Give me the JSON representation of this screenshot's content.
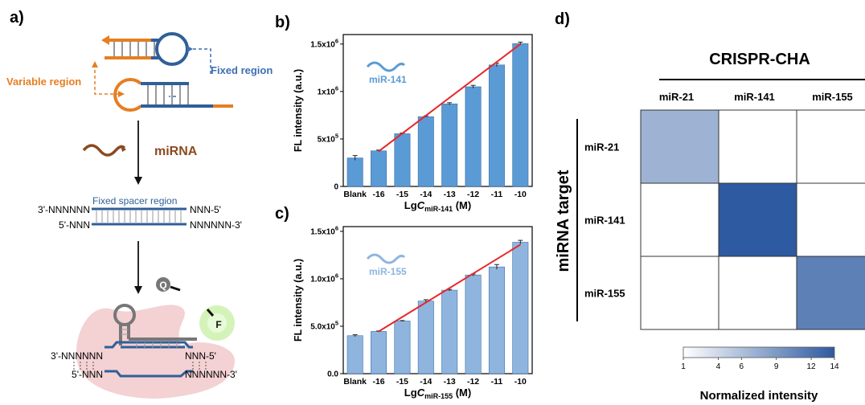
{
  "panels": {
    "a": {
      "label": "a)",
      "variable_region": "Variable region",
      "fixed_region": "Fixed region",
      "mirna": "miRNA",
      "fixed_spacer": "Fixed spacer region",
      "strand1_left": "3'-NNNNNN",
      "strand1_right": "NNN-5'",
      "strand2_left": "5'-NNN",
      "strand2_right": "NNNNNN-3'",
      "q_label": "Q",
      "f_label": "F",
      "bottom1_left": "3'-NNNNNN",
      "bottom1_right": "NNN-5'",
      "bottom2_left": "5'-NNN",
      "bottom2_right": "NNNNNN-3'"
    },
    "b": {
      "label": "b)"
    },
    "c": {
      "label": "c)"
    },
    "d": {
      "label": "d)"
    }
  },
  "chart_data": [
    {
      "type": "bar",
      "panel": "b",
      "inset_label": "miR-141",
      "categories": [
        "Blank",
        "-16",
        "-15",
        "-14",
        "-13",
        "-12",
        "-11",
        "-10"
      ],
      "values": [
        300000,
        375000,
        555000,
        735000,
        870000,
        1050000,
        1280000,
        1505000
      ],
      "errors": [
        25000,
        8000,
        8000,
        8000,
        12000,
        15000,
        18000,
        15000
      ],
      "fit_line": {
        "from_index": 1,
        "to_index": 7,
        "y_start": 370000,
        "y_end": 1500000
      },
      "ylabel": "FL intensity (a.u.)",
      "xlabel_prefix": "Lg",
      "xlabel_var": "C",
      "xlabel_sub": "miR-141",
      "xlabel_unit": " (M)",
      "ylim": [
        0,
        1600000
      ],
      "yticks": [
        {
          "value": 0,
          "base": "0",
          "exp": ""
        },
        {
          "value": 500000,
          "base": "5x10",
          "exp": "5"
        },
        {
          "value": 1000000,
          "base": "1x10",
          "exp": "6"
        },
        {
          "value": 1500000,
          "base": "1.5x10",
          "exp": "6"
        }
      ],
      "bar_color": "#5b9bd5",
      "line_color": "#e8262a"
    },
    {
      "type": "bar",
      "panel": "c",
      "inset_label": "miR-155",
      "categories": [
        "Blank",
        "-16",
        "-15",
        "-14",
        "-13",
        "-12",
        "-11",
        "-10"
      ],
      "values": [
        400000,
        445000,
        555000,
        765000,
        880000,
        1040000,
        1125000,
        1385000
      ],
      "errors": [
        10000,
        5000,
        5000,
        15000,
        8000,
        10000,
        25000,
        20000
      ],
      "fit_line": {
        "from_index": 1,
        "to_index": 7,
        "y_start": 445000,
        "y_end": 1360000
      },
      "ylabel": "FL intensity (a.u.)",
      "xlabel_prefix": "Lg",
      "xlabel_var": "C",
      "xlabel_sub": "miR-155",
      "xlabel_unit": " (M)",
      "ylim": [
        0,
        1550000
      ],
      "yticks": [
        {
          "value": 0,
          "base": "0.0",
          "exp": ""
        },
        {
          "value": 500000,
          "base": "5.0x10",
          "exp": "5"
        },
        {
          "value": 1000000,
          "base": "1.0x10",
          "exp": "6"
        },
        {
          "value": 1500000,
          "base": "1.5x10",
          "exp": "6"
        }
      ],
      "bar_color": "#8fb5df",
      "line_color": "#e8262a"
    },
    {
      "type": "heatmap",
      "panel": "d",
      "title": "CRISPR-CHA",
      "columns": [
        "miR-21",
        "miR-141",
        "miR-155"
      ],
      "rows": [
        "miR-21",
        "miR-141",
        "miR-155"
      ],
      "row_title": "miRNA target",
      "values": [
        [
          7,
          1,
          1
        ],
        [
          1,
          14,
          1
        ],
        [
          1,
          1,
          11
        ]
      ],
      "colorbar": {
        "ticks": [
          "1",
          "4",
          "6",
          "9",
          "12",
          "14"
        ],
        "min": 1,
        "max": 14,
        "label": "Normalized intensity"
      },
      "color_low": "#ffffff",
      "color_high": "#2d5aa0"
    }
  ]
}
